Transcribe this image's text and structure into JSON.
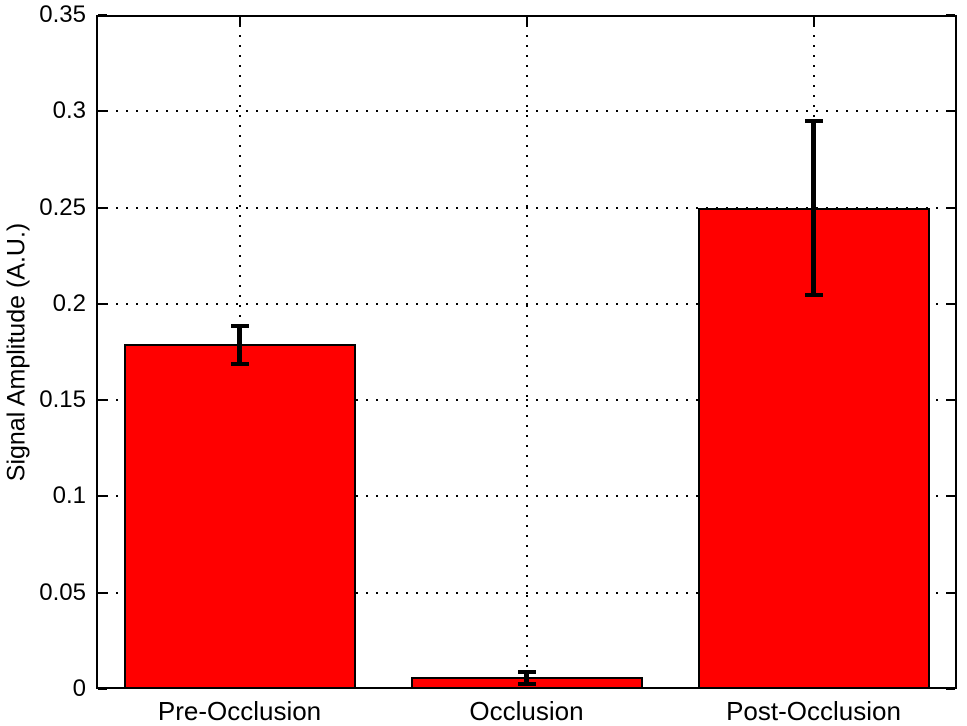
{
  "chart_data": {
    "type": "bar",
    "title": "",
    "xlabel": "",
    "ylabel": "Signal Amplitude (A.U.)",
    "categories": [
      "Pre-Occlusion",
      "Occlusion",
      "Post-Occlusion"
    ],
    "values": [
      0.179,
      0.006,
      0.25
    ],
    "errors": [
      0.01,
      0.003,
      0.045
    ],
    "ylim": [
      0,
      0.35
    ],
    "yticks": [
      0,
      0.05,
      0.1,
      0.15,
      0.2,
      0.25,
      0.3,
      0.35
    ],
    "ytick_labels": [
      "0",
      "0.05",
      "0.1",
      "0.15",
      "0.2",
      "0.25",
      "0.3",
      "0.35"
    ],
    "grid": true,
    "grid_style": "dotted",
    "legend": null,
    "colors": {
      "bar_fill": "#FF0000",
      "bar_edge": "#000000",
      "error_bar": "#000000",
      "axis": "#000000",
      "background": "#FFFFFF"
    }
  }
}
